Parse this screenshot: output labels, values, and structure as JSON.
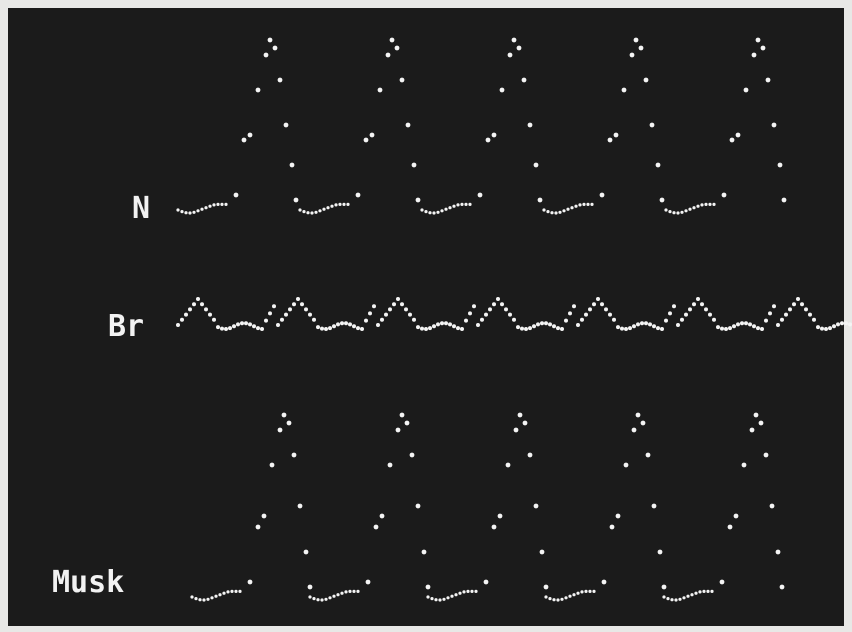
{
  "labels": {
    "top": "N",
    "middle": "Br",
    "bottom": "Musk"
  }
}
